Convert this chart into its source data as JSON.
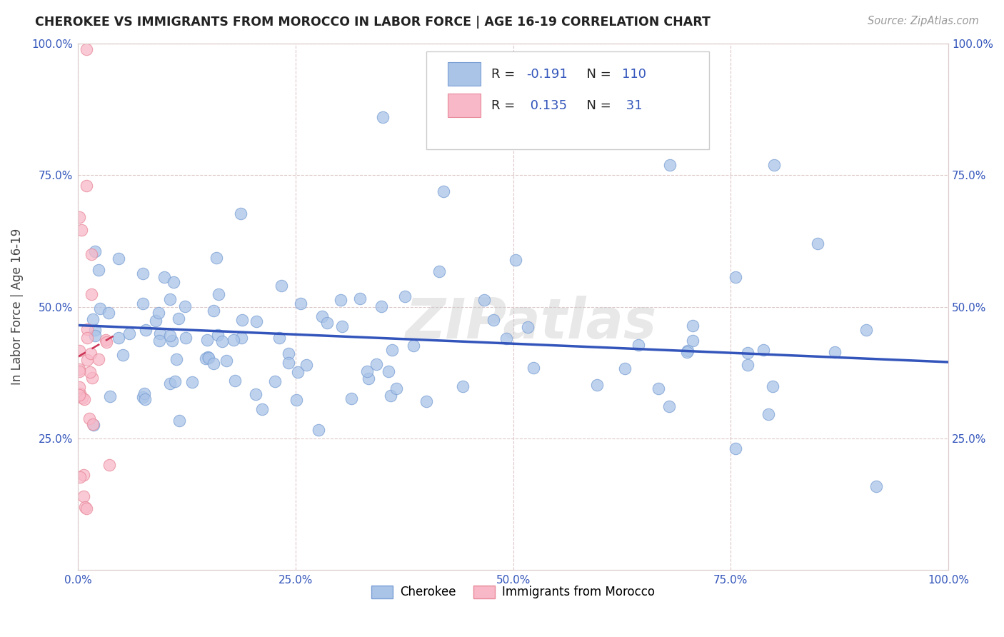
{
  "title": "CHEROKEE VS IMMIGRANTS FROM MOROCCO IN LABOR FORCE | AGE 16-19 CORRELATION CHART",
  "source": "Source: ZipAtlas.com",
  "ylabel": "In Labor Force | Age 16-19",
  "xlim": [
    0.0,
    1.0
  ],
  "ylim": [
    0.0,
    1.0
  ],
  "xtick_labels": [
    "0.0%",
    "25.0%",
    "50.0%",
    "75.0%",
    "100.0%"
  ],
  "xtick_vals": [
    0.0,
    0.25,
    0.5,
    0.75,
    1.0
  ],
  "ytick_labels": [
    "25.0%",
    "50.0%",
    "75.0%",
    "100.0%"
  ],
  "ytick_vals": [
    0.25,
    0.5,
    0.75,
    1.0
  ],
  "background_color": "#ffffff",
  "grid_color": "#ddc8c8",
  "cherokee_color": "#aac4e8",
  "cherokee_edge": "#7a9fd4",
  "morocco_color": "#f8b8c8",
  "morocco_edge": "#e88899",
  "cherokee_R": -0.191,
  "cherokee_N": 110,
  "morocco_R": 0.135,
  "morocco_N": 31,
  "cherokee_line_color": "#3355bb",
  "morocco_line_color": "#cc3355",
  "legend_label_cherokee": "Cherokee",
  "legend_label_morocco": "Immigrants from Morocco",
  "watermark": "ZIPatlas",
  "legend_R_color": "#3355bb",
  "legend_N_color": "#3355bb"
}
